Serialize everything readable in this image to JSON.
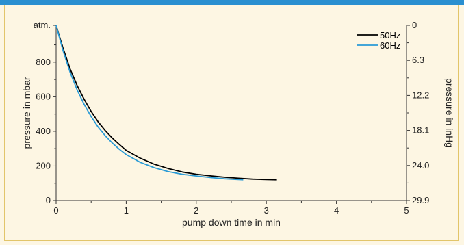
{
  "chart_data": {
    "type": "line",
    "xlabel": "pump down time in min",
    "ylabel": "pressure in mbar",
    "ylabel_right": "pressure in inHg",
    "xlim": [
      0,
      5
    ],
    "ylim": [
      0,
      1013
    ],
    "x_ticks": [
      "0",
      "1",
      "2",
      "3",
      "4",
      "5"
    ],
    "y_ticks_left": [
      {
        "value": 1013,
        "label": "atm."
      },
      {
        "value": 800,
        "label": "800"
      },
      {
        "value": 600,
        "label": "600"
      },
      {
        "value": 400,
        "label": "400"
      },
      {
        "value": 200,
        "label": "200"
      },
      {
        "value": 0,
        "label": "0"
      }
    ],
    "y_ticks_right": [
      "0",
      "6.3",
      "12.2",
      "18.1",
      "24.0",
      "29.9"
    ],
    "grid": false,
    "legend_position": "top-right",
    "series": [
      {
        "name": "50Hz",
        "color": "#000000",
        "points": [
          [
            0,
            1013
          ],
          [
            0.1,
            880
          ],
          [
            0.2,
            760
          ],
          [
            0.3,
            665
          ],
          [
            0.4,
            585
          ],
          [
            0.5,
            515
          ],
          [
            0.6,
            455
          ],
          [
            0.7,
            405
          ],
          [
            0.8,
            362
          ],
          [
            0.9,
            325
          ],
          [
            1.0,
            290
          ],
          [
            1.2,
            245
          ],
          [
            1.4,
            210
          ],
          [
            1.6,
            185
          ],
          [
            1.8,
            165
          ],
          [
            2.0,
            152
          ],
          [
            2.2,
            143
          ],
          [
            2.4,
            135
          ],
          [
            2.6,
            129
          ],
          [
            2.8,
            124
          ],
          [
            3.0,
            121
          ],
          [
            3.15,
            120
          ]
        ]
      },
      {
        "name": "60Hz",
        "color": "#2a9bd6",
        "points": [
          [
            0,
            1013
          ],
          [
            0.1,
            865
          ],
          [
            0.2,
            740
          ],
          [
            0.3,
            640
          ],
          [
            0.4,
            555
          ],
          [
            0.5,
            485
          ],
          [
            0.6,
            425
          ],
          [
            0.7,
            375
          ],
          [
            0.8,
            333
          ],
          [
            0.9,
            297
          ],
          [
            1.0,
            266
          ],
          [
            1.2,
            221
          ],
          [
            1.4,
            190
          ],
          [
            1.6,
            167
          ],
          [
            1.8,
            152
          ],
          [
            2.0,
            142
          ],
          [
            2.2,
            133
          ],
          [
            2.4,
            126
          ],
          [
            2.6,
            121
          ],
          [
            2.67,
            120
          ]
        ]
      }
    ]
  }
}
